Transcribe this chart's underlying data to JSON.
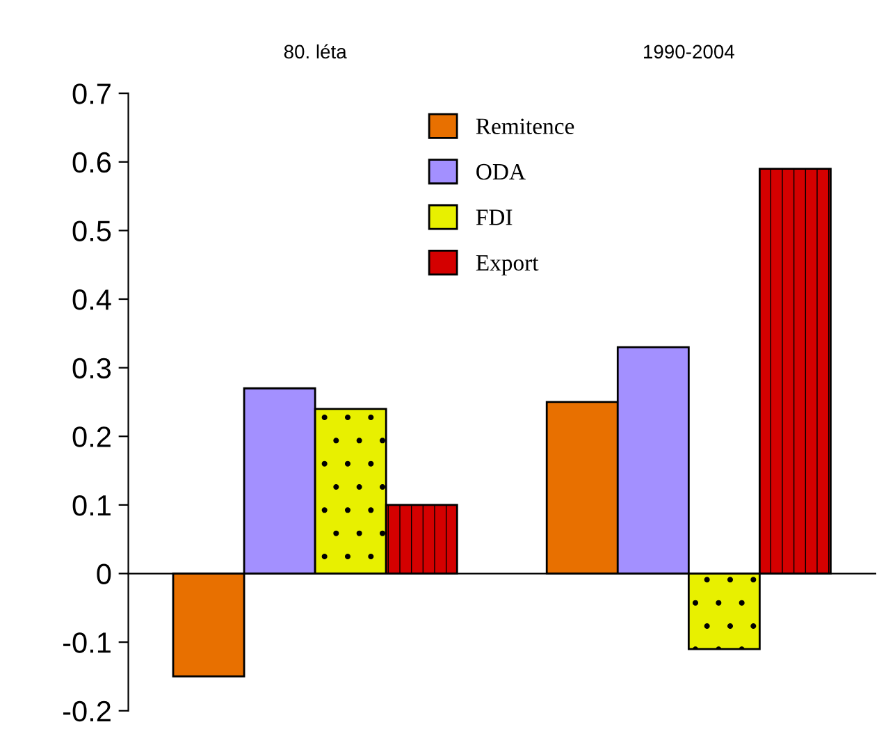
{
  "chart_data": {
    "type": "bar",
    "categories": [
      "80. léta",
      "1990-2004"
    ],
    "series": [
      {
        "name": "Remitence",
        "color": "#e87000",
        "values": [
          -0.15,
          0.25
        ]
      },
      {
        "name": "ODA",
        "color": "#a390ff",
        "values": [
          0.27,
          0.33
        ]
      },
      {
        "name": "FDI",
        "color": "#e8f000",
        "values": [
          0.24,
          -0.11
        ]
      },
      {
        "name": "Export",
        "color": "#d40000",
        "values": [
          0.1,
          0.59
        ]
      }
    ],
    "ylim": [
      -0.2,
      0.7
    ],
    "yticks": [
      -0.2,
      -0.1,
      0,
      0.1,
      0.2,
      0.3,
      0.4,
      0.5,
      0.6,
      0.7
    ],
    "legend": "top"
  }
}
